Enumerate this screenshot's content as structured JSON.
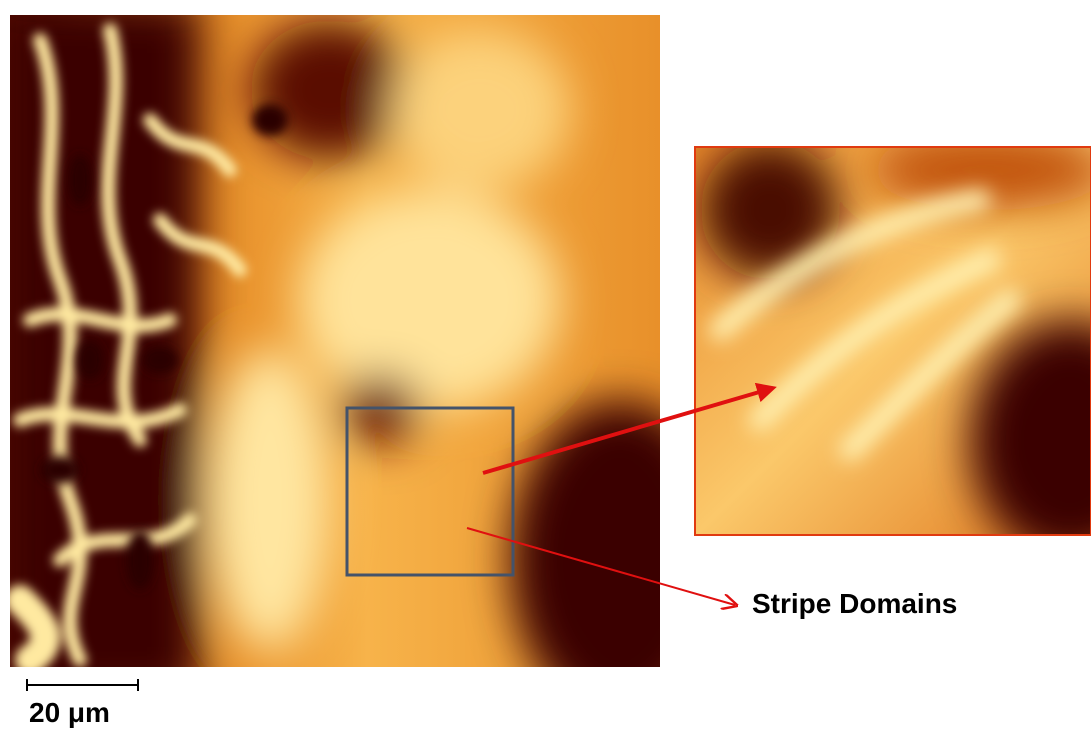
{
  "annotation": {
    "label": "Stripe Domains"
  },
  "scale_bar": {
    "label": "20 μm"
  }
}
